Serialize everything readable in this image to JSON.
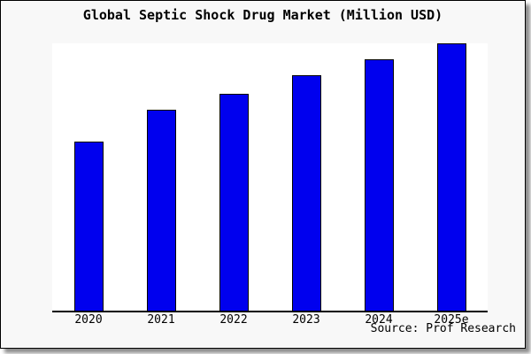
{
  "title": "Global Septic Shock Drug Market (Million USD)",
  "source_text": "Source: Prof Research",
  "colors": {
    "bar_fill": "#0000ee",
    "bar_border": "#000000",
    "background": "#f8f8f8",
    "plot_background": "#ffffff",
    "axis": "#000000"
  },
  "chart_data": {
    "type": "bar",
    "title": "Global Septic Shock Drug Market (Million USD)",
    "categories": [
      "2020",
      "2021",
      "2022",
      "2023",
      "2024",
      "2025e"
    ],
    "values": [
      63,
      75,
      81,
      88,
      94,
      100
    ],
    "value_scale": "relative (no y-axis or value labels shown in chart)",
    "xlabel": "",
    "ylabel": "",
    "ylim": [
      0,
      100.3
    ],
    "grid": false,
    "legend": false,
    "annotations": [
      "Source: Prof Research"
    ]
  }
}
